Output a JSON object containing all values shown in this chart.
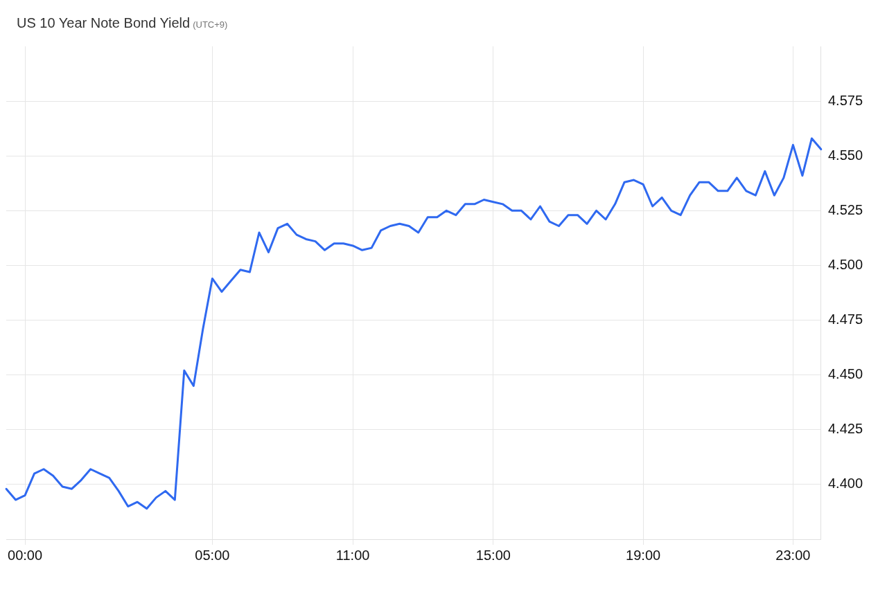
{
  "chart_data": {
    "type": "line",
    "title": "US 10 Year Note Bond Yield",
    "subtitle": "(UTC+9)",
    "categories": [
      null,
      null,
      "00:00",
      null,
      null,
      null,
      null,
      null,
      null,
      null,
      null,
      null,
      null,
      null,
      null,
      null,
      null,
      null,
      null,
      null,
      null,
      null,
      "05:00",
      null,
      null,
      null,
      null,
      null,
      null,
      null,
      null,
      null,
      null,
      null,
      null,
      null,
      null,
      "11:00",
      null,
      null,
      null,
      null,
      null,
      null,
      null,
      null,
      null,
      null,
      null,
      null,
      null,
      null,
      "15:00",
      null,
      null,
      null,
      null,
      null,
      null,
      null,
      null,
      null,
      null,
      null,
      null,
      null,
      null,
      null,
      "19:00",
      null,
      null,
      null,
      null,
      null,
      null,
      null,
      null,
      null,
      null,
      null,
      null,
      null,
      null,
      null,
      "23:00",
      null,
      null,
      null
    ],
    "series": [
      {
        "color": "#2f69f0",
        "values": [
          4.398,
          4.393,
          4.395,
          4.405,
          4.407,
          4.404,
          4.399,
          4.398,
          4.402,
          4.407,
          4.405,
          4.403,
          4.397,
          4.39,
          4.392,
          4.389,
          4.394,
          4.397,
          4.393,
          4.452,
          4.445,
          4.471,
          4.494,
          4.488,
          4.493,
          4.498,
          4.497,
          4.515,
          4.506,
          4.517,
          4.519,
          4.514,
          4.512,
          4.511,
          4.507,
          4.51,
          4.51,
          4.509,
          4.507,
          4.508,
          4.516,
          4.518,
          4.519,
          4.518,
          4.515,
          4.522,
          4.522,
          4.525,
          4.523,
          4.528,
          4.528,
          4.53,
          4.529,
          4.528,
          4.525,
          4.525,
          4.521,
          4.527,
          4.52,
          4.518,
          4.523,
          4.523,
          4.519,
          4.525,
          4.521,
          4.528,
          4.538,
          4.539,
          4.537,
          4.527,
          4.531,
          4.525,
          4.523,
          4.532,
          4.538,
          4.538,
          4.534,
          4.534,
          4.54,
          4.534,
          4.532,
          4.543,
          4.532,
          4.54,
          4.555,
          4.541,
          4.558,
          4.553
        ]
      }
    ],
    "ylim": [
      4.375,
      4.6
    ],
    "yticks": [
      {
        "value": 4.4,
        "label": "4.400"
      },
      {
        "value": 4.425,
        "label": "4.425"
      },
      {
        "value": 4.45,
        "label": "4.450"
      },
      {
        "value": 4.475,
        "label": "4.475"
      },
      {
        "value": 4.5,
        "label": "4.500"
      },
      {
        "value": 4.525,
        "label": "4.525"
      },
      {
        "value": 4.55,
        "label": "4.550"
      },
      {
        "value": 4.575,
        "label": "4.575"
      }
    ],
    "grid": true,
    "legend": false,
    "marker": "none",
    "line_style": "solid"
  }
}
